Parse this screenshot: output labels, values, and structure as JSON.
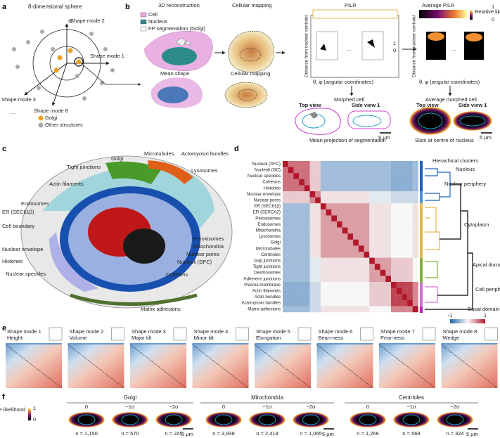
{
  "panel_a": {
    "label": "a",
    "title": "8-dimensional sphere",
    "axes": [
      "Shape mode 2",
      "Shape mode 1",
      "Shape mode 3",
      "Shape mode 8"
    ],
    "ellipsis": "...",
    "legend": [
      "Golgi",
      "Other structures"
    ]
  },
  "panel_b": {
    "label": "b",
    "reconstruction_title": "3D reconstruction",
    "legend": [
      "Cell",
      "Nucleus",
      "FP segmentation (Golgi)"
    ],
    "mapping_title": "Cellular mapping",
    "pilr_title": "PILR",
    "avg_pilr_title": "Average PILR",
    "y_axis": [
      "Distance from nuclear centroid",
      "Distance from nuclear centroid"
    ],
    "x_axis": [
      "θ, φ (angular coordinates)",
      "θ, φ (angular coordinates)"
    ],
    "ellipsis": [
      "...",
      "..."
    ],
    "scale_top": "1",
    "scale_bottom": "0",
    "likelihood_label": "Relative likelihood",
    "likelihood_max": "1",
    "likelihood_min": "0",
    "morphed": "Morphed cell",
    "avg_morphed": "Average morphed cell",
    "mean_shape": "Mean shape",
    "mapping_title_2": "Cellular mapping",
    "top_view": "Top view",
    "side_view": "Side view 1",
    "scale": "5 µm",
    "mean_projection": "Mean projection of segmentation",
    "top_view_2": "Top view",
    "side_view_2": "Side view 1",
    "scale_2": "5 µm",
    "slice": "Slice at centre of nucleus"
  },
  "panel_c": {
    "label": "c",
    "structures": [
      {
        "label": "Microtubules",
        "color": "#e0601a"
      },
      {
        "label": "Actomyosin bundles",
        "color": "#b8b8b8"
      },
      {
        "label": "Golgi",
        "color": "#3f9a2a"
      },
      {
        "label": "Tight junctions",
        "color": "#d98ad9"
      },
      {
        "label": "Lysosomes",
        "color": "#5aa84a"
      },
      {
        "label": "Actin filaments",
        "color": "#d8b818"
      },
      {
        "label": "Endosomes",
        "color": "#f08080"
      },
      {
        "label": "ER (SEC61β)",
        "color": "#30b0c8"
      },
      {
        "label": "Cell boundary",
        "color": "#a0a0a0"
      },
      {
        "label": "Nuclear envelope",
        "color": "#3050c0"
      },
      {
        "label": "Histones",
        "color": "#c02020"
      },
      {
        "label": "Nuclear speckles",
        "color": "#8a8ad0"
      },
      {
        "label": "Peroxisomes",
        "color": "#d0a040"
      },
      {
        "label": "Mitochondria",
        "color": "#c02040"
      },
      {
        "label": "Nuclear pores",
        "color": "#80a0d0"
      },
      {
        "label": "Nucleoli (DFC)",
        "color": "#e07830"
      },
      {
        "label": "Cohesins",
        "color": "#2050b0"
      },
      {
        "label": "Matrix adhesions",
        "color": "#507030"
      }
    ]
  },
  "panel_d": {
    "label": "d",
    "rows": [
      "Nucleoli (DFC)",
      "Nucleoli (GC)",
      "Nuclear speckles",
      "Cohesins",
      "Histones",
      "Nuclear envelope",
      "Nuclear pores",
      "ER (SEC61β)",
      "ER (SERCA2)",
      "Peroxisomes",
      "Endosomes",
      "Mitochondria",
      "Lysosomes",
      "Golgi",
      "Microtubules",
      "Centrioles",
      "Gap junctions",
      "Tight junctions",
      "Desmosomes",
      "Adherens junctions",
      "Plasma membrane",
      "Actin filaments",
      "Actin bundles",
      "Actomyosin bundles",
      "Matrix adhesions"
    ],
    "matrix": [
      [
        1,
        0.6,
        0.6,
        0.6,
        0.6,
        0.2,
        0.2,
        -0.4,
        -0.4,
        -0.4,
        -0.4,
        -0.4,
        -0.4,
        -0.4,
        -0.4,
        -0.4,
        -0.4,
        -0.4,
        -0.4,
        -0.4,
        -0.5,
        -0.5,
        -0.5,
        -0.5,
        -0.4
      ],
      [
        0.6,
        1,
        0.6,
        0.6,
        0.6,
        0.2,
        0.2,
        -0.4,
        -0.4,
        -0.4,
        -0.4,
        -0.4,
        -0.4,
        -0.4,
        -0.4,
        -0.4,
        -0.4,
        -0.4,
        -0.4,
        -0.4,
        -0.5,
        -0.5,
        -0.5,
        -0.5,
        -0.4
      ],
      [
        0.6,
        0.6,
        1,
        0.6,
        0.6,
        0.2,
        0.2,
        -0.4,
        -0.4,
        -0.4,
        -0.4,
        -0.4,
        -0.4,
        -0.4,
        -0.4,
        -0.4,
        -0.4,
        -0.4,
        -0.4,
        -0.4,
        -0.5,
        -0.5,
        -0.5,
        -0.5,
        -0.4
      ],
      [
        0.6,
        0.6,
        0.6,
        1,
        0.6,
        0.2,
        0.2,
        -0.4,
        -0.4,
        -0.4,
        -0.4,
        -0.4,
        -0.4,
        -0.4,
        -0.4,
        -0.4,
        -0.4,
        -0.4,
        -0.4,
        -0.4,
        -0.5,
        -0.5,
        -0.5,
        -0.5,
        -0.4
      ],
      [
        0.6,
        0.6,
        0.6,
        0.6,
        1,
        0.2,
        0.2,
        -0.4,
        -0.4,
        -0.4,
        -0.4,
        -0.4,
        -0.4,
        -0.4,
        -0.4,
        -0.4,
        -0.4,
        -0.4,
        -0.4,
        -0.4,
        -0.5,
        -0.5,
        -0.5,
        -0.5,
        -0.4
      ],
      [
        0.2,
        0.2,
        0.2,
        0.2,
        0.2,
        1,
        0.5,
        0.1,
        0.1,
        0.1,
        0.1,
        0.1,
        0.1,
        0.1,
        0.1,
        0.1,
        -0.1,
        -0.1,
        -0.1,
        -0.1,
        -0.2,
        -0.2,
        -0.2,
        -0.2,
        -0.2
      ],
      [
        0.2,
        0.2,
        0.2,
        0.2,
        0.2,
        0.5,
        1,
        0.1,
        0.1,
        0.1,
        0.1,
        0.1,
        0.1,
        0.1,
        0.1,
        0.1,
        -0.1,
        -0.1,
        -0.1,
        -0.1,
        -0.2,
        -0.2,
        -0.2,
        -0.2,
        -0.2
      ],
      [
        -0.4,
        -0.4,
        -0.4,
        -0.4,
        -0.4,
        0.1,
        0.1,
        1,
        0.4,
        0.4,
        0.4,
        0.4,
        0.4,
        0.4,
        0.4,
        0.4,
        0.1,
        0.1,
        0.1,
        0.1,
        0,
        0,
        0,
        0,
        0.1
      ],
      [
        -0.4,
        -0.4,
        -0.4,
        -0.4,
        -0.4,
        0.1,
        0.1,
        0.4,
        1,
        0.4,
        0.4,
        0.4,
        0.4,
        0.4,
        0.4,
        0.4,
        0.1,
        0.1,
        0.1,
        0.1,
        0,
        0,
        0,
        0,
        0.1
      ],
      [
        -0.4,
        -0.4,
        -0.4,
        -0.4,
        -0.4,
        0.1,
        0.1,
        0.4,
        0.4,
        1,
        0.4,
        0.4,
        0.4,
        0.4,
        0.4,
        0.4,
        0.1,
        0.1,
        0.1,
        0.1,
        0,
        0,
        0,
        0,
        0.1
      ],
      [
        -0.4,
        -0.4,
        -0.4,
        -0.4,
        -0.4,
        0.1,
        0.1,
        0.4,
        0.4,
        0.4,
        1,
        0.4,
        0.4,
        0.4,
        0.4,
        0.4,
        0.1,
        0.1,
        0.1,
        0.1,
        0,
        0,
        0,
        0,
        0.1
      ],
      [
        -0.4,
        -0.4,
        -0.4,
        -0.4,
        -0.4,
        0.1,
        0.1,
        0.4,
        0.4,
        0.4,
        0.4,
        1,
        0.4,
        0.4,
        0.4,
        0.4,
        0.1,
        0.1,
        0.1,
        0.1,
        0,
        0,
        0,
        0,
        0.1
      ],
      [
        -0.4,
        -0.4,
        -0.4,
        -0.4,
        -0.4,
        0.1,
        0.1,
        0.4,
        0.4,
        0.4,
        0.4,
        0.4,
        1,
        0.4,
        0.4,
        0.4,
        0.1,
        0.1,
        0.1,
        0.1,
        0,
        0,
        0,
        0,
        0.1
      ],
      [
        -0.4,
        -0.4,
        -0.4,
        -0.4,
        -0.4,
        0.1,
        0.1,
        0.4,
        0.4,
        0.4,
        0.4,
        0.4,
        0.4,
        1,
        0.4,
        0.4,
        0.1,
        0.1,
        0.1,
        0.1,
        0,
        0,
        0,
        0,
        0.1
      ],
      [
        -0.4,
        -0.4,
        -0.4,
        -0.4,
        -0.4,
        0.1,
        0.1,
        0.4,
        0.4,
        0.4,
        0.4,
        0.4,
        0.4,
        0.4,
        1,
        0.4,
        0.1,
        0.1,
        0.1,
        0.1,
        0,
        0,
        0,
        0,
        0.1
      ],
      [
        -0.4,
        -0.4,
        -0.4,
        -0.4,
        -0.4,
        0.1,
        0.1,
        0.4,
        0.4,
        0.4,
        0.4,
        0.4,
        0.4,
        0.4,
        0.4,
        1,
        0.1,
        0.1,
        0.1,
        0.1,
        0,
        0,
        0,
        0,
        0.1
      ],
      [
        -0.4,
        -0.4,
        -0.4,
        -0.4,
        -0.4,
        -0.1,
        -0.1,
        0.1,
        0.1,
        0.1,
        0.1,
        0.1,
        0.1,
        0.1,
        0.1,
        0.1,
        1,
        0.4,
        0.4,
        0.4,
        0.2,
        0.2,
        0.2,
        0.2,
        0
      ],
      [
        -0.4,
        -0.4,
        -0.4,
        -0.4,
        -0.4,
        -0.1,
        -0.1,
        0.1,
        0.1,
        0.1,
        0.1,
        0.1,
        0.1,
        0.1,
        0.1,
        0.1,
        0.4,
        1,
        0.4,
        0.4,
        0.2,
        0.2,
        0.2,
        0.2,
        0
      ],
      [
        -0.4,
        -0.4,
        -0.4,
        -0.4,
        -0.4,
        -0.1,
        -0.1,
        0.1,
        0.1,
        0.1,
        0.1,
        0.1,
        0.1,
        0.1,
        0.1,
        0.1,
        0.4,
        0.4,
        1,
        0.4,
        0.2,
        0.2,
        0.2,
        0.2,
        0
      ],
      [
        -0.4,
        -0.4,
        -0.4,
        -0.4,
        -0.4,
        -0.1,
        -0.1,
        0.1,
        0.1,
        0.1,
        0.1,
        0.1,
        0.1,
        0.1,
        0.1,
        0.1,
        0.4,
        0.4,
        0.4,
        1,
        0.2,
        0.2,
        0.2,
        0.2,
        0
      ],
      [
        -0.5,
        -0.5,
        -0.5,
        -0.5,
        -0.5,
        -0.2,
        -0.2,
        0,
        0,
        0,
        0,
        0,
        0,
        0,
        0,
        0,
        0.2,
        0.2,
        0.2,
        0.2,
        1,
        0.8,
        0.8,
        0.8,
        0.5
      ],
      [
        -0.5,
        -0.5,
        -0.5,
        -0.5,
        -0.5,
        -0.2,
        -0.2,
        0,
        0,
        0,
        0,
        0,
        0,
        0,
        0,
        0,
        0.2,
        0.2,
        0.2,
        0.2,
        0.8,
        1,
        0.8,
        0.8,
        0.5
      ],
      [
        -0.5,
        -0.5,
        -0.5,
        -0.5,
        -0.5,
        -0.2,
        -0.2,
        0,
        0,
        0,
        0,
        0,
        0,
        0,
        0,
        0,
        0.2,
        0.2,
        0.2,
        0.2,
        0.8,
        0.8,
        1,
        0.8,
        0.5
      ],
      [
        -0.5,
        -0.5,
        -0.5,
        -0.5,
        -0.5,
        -0.2,
        -0.2,
        0,
        0,
        0,
        0,
        0,
        0,
        0,
        0,
        0,
        0.2,
        0.2,
        0.2,
        0.2,
        0.8,
        0.8,
        0.8,
        1,
        0.5
      ],
      [
        -0.4,
        -0.4,
        -0.4,
        -0.4,
        -0.4,
        -0.2,
        -0.2,
        0.1,
        0.1,
        0.1,
        0.1,
        0.1,
        0.1,
        0.1,
        0.1,
        0.1,
        0,
        0,
        0,
        0,
        0.5,
        0.5,
        0.5,
        0.5,
        1
      ]
    ],
    "clusters_title": "Hierachical clusters",
    "clusters": [
      {
        "label": "Nucleus",
        "color": "#2060c0"
      },
      {
        "label": "Nuclear periphery",
        "color": "#2060c0"
      },
      {
        "label": "Cytoplasm",
        "color": "#e8b850"
      },
      {
        "label": "Apical domain",
        "color": "#80b040"
      },
      {
        "label": "Cell periphery",
        "color": "#d070d0"
      },
      {
        "label": "Basal domain",
        "color": "#c020c0"
      }
    ],
    "colorbar_min": -1,
    "colorbar_max": 1
  },
  "panel_e": {
    "label": "e",
    "modes": [
      {
        "mode": "Shape mode 1",
        "name": "Height"
      },
      {
        "mode": "Shape mode 2",
        "name": "Volume"
      },
      {
        "mode": "Shape mode 3",
        "name": "Major tilt"
      },
      {
        "mode": "Shape mode 4",
        "name": "Minor tilt"
      },
      {
        "mode": "Shape mode 5",
        "name": "Elongation"
      },
      {
        "mode": "Shape mode 6",
        "name": "Bean-ness"
      },
      {
        "mode": "Shape mode 7",
        "name": "Pear-ness"
      },
      {
        "mode": "Shape mode 8",
        "name": "Wedge"
      }
    ]
  },
  "panel_f": {
    "label": "f",
    "likelihood_label": "Relative likelihood",
    "likelihood_max": "1",
    "likelihood_min": "0",
    "groups": [
      {
        "name": "Golgi",
        "columns": [
          "0",
          "−1σ",
          "−2σ"
        ],
        "counts": [
          "n = 1,150",
          "n = 570",
          "n = 245"
        ]
      },
      {
        "name": "Mitochondria",
        "columns": [
          "0",
          "−1σ",
          "−2σ"
        ],
        "counts": [
          "n = 3,938",
          "n = 2,418",
          "n = 1,065"
        ]
      },
      {
        "name": "Centrioles",
        "columns": [
          "0",
          "−1σ",
          "−2σ"
        ],
        "counts": [
          "n = 1,266",
          "n = 568",
          "n = 324"
        ]
      }
    ],
    "scales": [
      "5 µm",
      "5 µm",
      "5 µm"
    ]
  }
}
